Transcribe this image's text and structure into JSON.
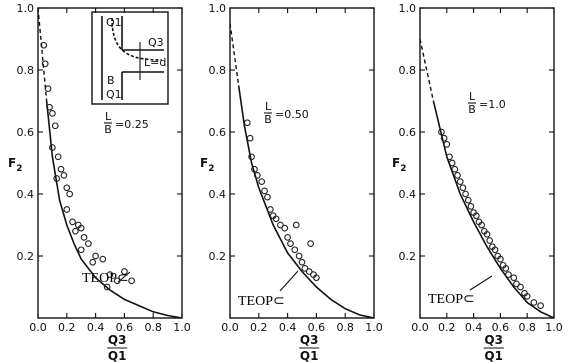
{
  "chart_data": [
    {
      "type": "line",
      "param_label": {
        "num": "L",
        "den": "B",
        "value": "=0.25"
      },
      "ylabel": "F2",
      "xlabel": {
        "num": "Q3",
        "den": "Q1"
      },
      "xlim": [
        0,
        1.0
      ],
      "ylim": [
        0,
        1.0
      ],
      "x_ticks": [
        "0.0",
        "0.2",
        "0.4",
        "0.6",
        "0.8",
        "1.0"
      ],
      "y_ticks": [
        "0.2",
        "0.4",
        "0.6",
        "0.8",
        "1.0"
      ],
      "annotation": "TEOP⊂",
      "inset": {
        "labels": [
          "Q1",
          "B",
          "Q3",
          "L=d"
        ]
      },
      "dashed_segment": [
        [
          0.0,
          1.0
        ],
        [
          0.02,
          0.9
        ],
        [
          0.04,
          0.8
        ],
        [
          0.06,
          0.7
        ]
      ],
      "curve": [
        [
          0.06,
          0.7
        ],
        [
          0.1,
          0.52
        ],
        [
          0.15,
          0.38
        ],
        [
          0.2,
          0.3
        ],
        [
          0.25,
          0.24
        ],
        [
          0.3,
          0.19
        ],
        [
          0.4,
          0.13
        ],
        [
          0.5,
          0.09
        ],
        [
          0.6,
          0.06
        ],
        [
          0.7,
          0.04
        ],
        [
          0.8,
          0.02
        ],
        [
          0.9,
          0.008
        ],
        [
          1.0,
          0.0
        ]
      ],
      "points": [
        [
          0.04,
          0.88
        ],
        [
          0.05,
          0.82
        ],
        [
          0.07,
          0.74
        ],
        [
          0.08,
          0.68
        ],
        [
          0.1,
          0.66
        ],
        [
          0.12,
          0.62
        ],
        [
          0.1,
          0.55
        ],
        [
          0.14,
          0.52
        ],
        [
          0.16,
          0.48
        ],
        [
          0.18,
          0.46
        ],
        [
          0.13,
          0.45
        ],
        [
          0.2,
          0.42
        ],
        [
          0.22,
          0.4
        ],
        [
          0.2,
          0.35
        ],
        [
          0.24,
          0.31
        ],
        [
          0.28,
          0.3
        ],
        [
          0.3,
          0.29
        ],
        [
          0.26,
          0.28
        ],
        [
          0.32,
          0.26
        ],
        [
          0.35,
          0.24
        ],
        [
          0.3,
          0.22
        ],
        [
          0.4,
          0.2
        ],
        [
          0.45,
          0.19
        ],
        [
          0.38,
          0.18
        ],
        [
          0.5,
          0.14
        ],
        [
          0.55,
          0.12
        ],
        [
          0.6,
          0.15
        ],
        [
          0.48,
          0.1
        ],
        [
          0.65,
          0.12
        ]
      ]
    },
    {
      "type": "line",
      "param_label": {
        "num": "L",
        "den": "B",
        "value": "=0.50"
      },
      "ylabel": "F2",
      "xlabel": {
        "num": "Q3",
        "den": "Q1"
      },
      "xlim": [
        0,
        1.0
      ],
      "ylim": [
        0,
        1.0
      ],
      "x_ticks": [
        "0.0",
        "0.2",
        "0.4",
        "0.6",
        "0.8",
        "1.0"
      ],
      "y_ticks": [
        "0.2",
        "0.4",
        "0.6",
        "0.8",
        "1.0"
      ],
      "annotation": "TEOP⊂",
      "dashed_segment": [
        [
          0.0,
          0.95
        ],
        [
          0.03,
          0.85
        ],
        [
          0.06,
          0.75
        ]
      ],
      "curve": [
        [
          0.06,
          0.75
        ],
        [
          0.1,
          0.62
        ],
        [
          0.15,
          0.5
        ],
        [
          0.2,
          0.42
        ],
        [
          0.3,
          0.3
        ],
        [
          0.4,
          0.21
        ],
        [
          0.5,
          0.15
        ],
        [
          0.6,
          0.1
        ],
        [
          0.7,
          0.06
        ],
        [
          0.8,
          0.03
        ],
        [
          0.9,
          0.01
        ],
        [
          1.0,
          0.0
        ]
      ],
      "points": [
        [
          0.12,
          0.63
        ],
        [
          0.14,
          0.58
        ],
        [
          0.15,
          0.52
        ],
        [
          0.17,
          0.48
        ],
        [
          0.19,
          0.46
        ],
        [
          0.22,
          0.44
        ],
        [
          0.24,
          0.41
        ],
        [
          0.26,
          0.39
        ],
        [
          0.28,
          0.35
        ],
        [
          0.3,
          0.33
        ],
        [
          0.32,
          0.32
        ],
        [
          0.35,
          0.3
        ],
        [
          0.38,
          0.29
        ],
        [
          0.4,
          0.26
        ],
        [
          0.42,
          0.24
        ],
        [
          0.45,
          0.22
        ],
        [
          0.48,
          0.2
        ],
        [
          0.5,
          0.18
        ],
        [
          0.52,
          0.16
        ],
        [
          0.55,
          0.15
        ],
        [
          0.58,
          0.14
        ],
        [
          0.6,
          0.13
        ],
        [
          0.46,
          0.3
        ],
        [
          0.56,
          0.24
        ]
      ]
    },
    {
      "type": "line",
      "param_label": {
        "num": "L",
        "den": "B",
        "value": "=1.0"
      },
      "ylabel": "F2",
      "xlabel": {
        "num": "Q3",
        "den": "Q1"
      },
      "xlim": [
        0,
        1.0
      ],
      "ylim": [
        0,
        1.0
      ],
      "x_ticks": [
        "0.0",
        "0.2",
        "0.4",
        "0.6",
        "0.8",
        "1.0"
      ],
      "y_ticks": [
        "0.2",
        "0.4",
        "0.6",
        "0.8",
        "1.0"
      ],
      "annotation": "TEOP⊂",
      "dashed_segment": [
        [
          0.0,
          0.9
        ],
        [
          0.05,
          0.8
        ],
        [
          0.1,
          0.7
        ]
      ],
      "curve": [
        [
          0.1,
          0.7
        ],
        [
          0.2,
          0.52
        ],
        [
          0.3,
          0.4
        ],
        [
          0.4,
          0.31
        ],
        [
          0.5,
          0.23
        ],
        [
          0.6,
          0.16
        ],
        [
          0.7,
          0.1
        ],
        [
          0.8,
          0.05
        ],
        [
          0.9,
          0.02
        ],
        [
          1.0,
          0.0
        ]
      ],
      "points": [
        [
          0.16,
          0.6
        ],
        [
          0.18,
          0.58
        ],
        [
          0.2,
          0.56
        ],
        [
          0.22,
          0.52
        ],
        [
          0.24,
          0.5
        ],
        [
          0.26,
          0.48
        ],
        [
          0.28,
          0.46
        ],
        [
          0.3,
          0.44
        ],
        [
          0.32,
          0.42
        ],
        [
          0.34,
          0.4
        ],
        [
          0.36,
          0.38
        ],
        [
          0.38,
          0.36
        ],
        [
          0.4,
          0.34
        ],
        [
          0.42,
          0.33
        ],
        [
          0.44,
          0.31
        ],
        [
          0.46,
          0.3
        ],
        [
          0.48,
          0.28
        ],
        [
          0.5,
          0.27
        ],
        [
          0.52,
          0.25
        ],
        [
          0.54,
          0.23
        ],
        [
          0.56,
          0.22
        ],
        [
          0.58,
          0.2
        ],
        [
          0.6,
          0.19
        ],
        [
          0.62,
          0.17
        ],
        [
          0.64,
          0.16
        ],
        [
          0.66,
          0.14
        ],
        [
          0.7,
          0.13
        ],
        [
          0.72,
          0.11
        ],
        [
          0.75,
          0.1
        ],
        [
          0.78,
          0.08
        ],
        [
          0.8,
          0.07
        ],
        [
          0.85,
          0.05
        ],
        [
          0.9,
          0.04
        ]
      ]
    }
  ]
}
